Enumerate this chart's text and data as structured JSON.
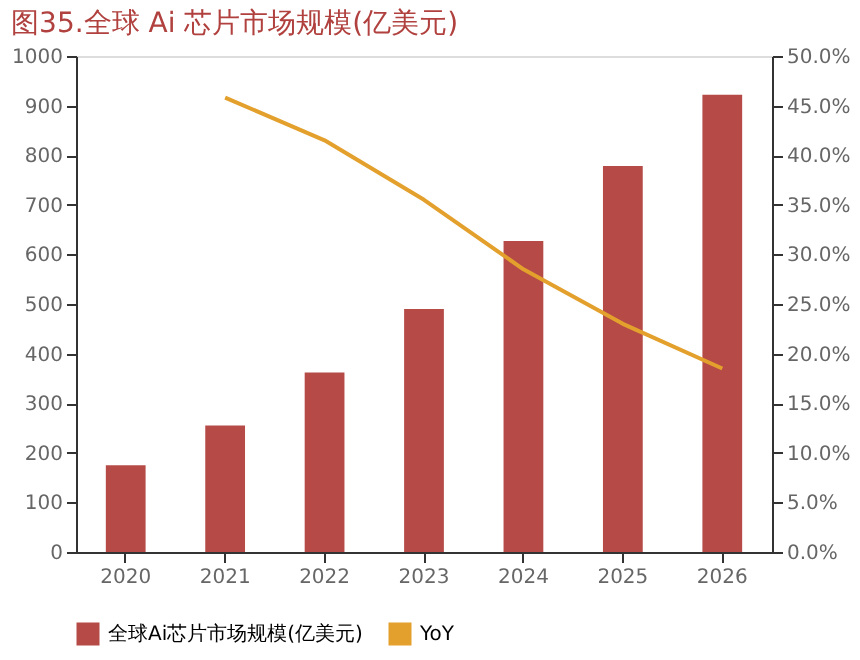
{
  "chart_data": {
    "type": "bar",
    "title": "图35.全球 Ai 芯片市场规模(亿美元)",
    "categories": [
      "2020",
      "2021",
      "2022",
      "2023",
      "2024",
      "2025",
      "2026"
    ],
    "series": [
      {
        "name": "全球Ai芯片市场规模(亿美元)",
        "color": "#b54a46",
        "values": [
          175,
          255,
          362,
          490,
          627,
          778,
          922
        ]
      },
      {
        "name": "YoY",
        "type": "line",
        "axis": "y2",
        "color": "#e3a02c",
        "values": [
          null,
          45.8,
          41.5,
          35.5,
          28.5,
          23.0,
          18.5
        ]
      }
    ],
    "ylim": [
      0,
      1000
    ],
    "yticks": [
      0,
      100,
      200,
      300,
      400,
      500,
      600,
      700,
      800,
      900,
      1000
    ],
    "y2lim": [
      0,
      50
    ],
    "y2ticks": [
      {
        "value": 0,
        "label": "0.0%"
      },
      {
        "value": 5,
        "label": "5.0%"
      },
      {
        "value": 10,
        "label": "10.0%"
      },
      {
        "value": 15,
        "label": "15.0%"
      },
      {
        "value": 20,
        "label": "20.0%"
      },
      {
        "value": 25,
        "label": "25.0%"
      },
      {
        "value": 30,
        "label": "30.0%"
      },
      {
        "value": 35,
        "label": "35.0%"
      },
      {
        "value": 40,
        "label": "40.0%"
      },
      {
        "value": 45,
        "label": "45.0%"
      },
      {
        "value": 50,
        "label": "50.0%"
      }
    ],
    "legend": "bottom",
    "grid": false
  }
}
